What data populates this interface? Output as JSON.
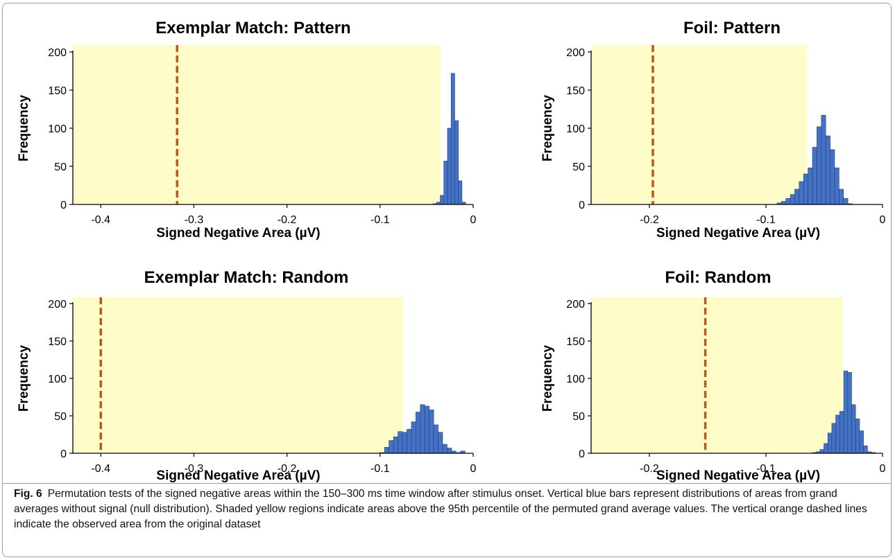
{
  "chart_data": [
    {
      "type": "bar",
      "title": "Exemplar Match: Pattern",
      "xlabel": "Signed Negative Area (µV)",
      "ylabel": "Frequency",
      "xlim": [
        -0.43,
        0.0
      ],
      "ylim": [
        0,
        200
      ],
      "xticks": [
        -0.4,
        -0.3,
        -0.2,
        -0.1,
        0
      ],
      "xtick_labels": [
        "-0.4",
        "-0.3",
        "-0.2",
        "-0.1",
        "0"
      ],
      "yticks": [
        0,
        50,
        100,
        150,
        200
      ],
      "yticks_labels": [
        "0",
        "50",
        "100",
        "150",
        "200"
      ],
      "bin_width": 0.0039,
      "bins_start": [
        -0.0432,
        -0.0393,
        -0.0354,
        -0.0315,
        -0.0276,
        -0.0237,
        -0.0198,
        -0.0159,
        -0.012
      ],
      "values": [
        1,
        3,
        12,
        57,
        100,
        172,
        110,
        31,
        3
      ],
      "shaded_region": [
        -0.43,
        -0.035
      ],
      "observed_line": -0.318,
      "colors": {
        "bar": "#4472c4",
        "bar_edge": "#1f3d7a",
        "shade": "#fefdc7",
        "line": "#c0561a"
      }
    },
    {
      "type": "bar",
      "title": "Foil: Pattern",
      "xlabel": "Signed Negative Area (µV)",
      "ylabel": "Frequency",
      "xlim": [
        -0.25,
        0.0
      ],
      "ylim": [
        0,
        200
      ],
      "xticks": [
        -0.2,
        -0.1,
        0
      ],
      "xtick_labels": [
        "-0.2",
        "-0.1",
        "0"
      ],
      "yticks": [
        0,
        50,
        100,
        150,
        200
      ],
      "yticks_labels": [
        "0",
        "50",
        "100",
        "150",
        "200"
      ],
      "bin_width": 0.0038,
      "bins_start": [
        -0.0905,
        -0.0867,
        -0.0829,
        -0.0791,
        -0.0753,
        -0.0715,
        -0.0677,
        -0.0639,
        -0.0601,
        -0.0563,
        -0.0525,
        -0.0487,
        -0.0449,
        -0.0411,
        -0.0373,
        -0.0335,
        -0.0297
      ],
      "values": [
        2,
        4,
        8,
        13,
        20,
        30,
        40,
        48,
        75,
        102,
        117,
        90,
        72,
        48,
        20,
        8,
        1
      ],
      "shaded_region": [
        -0.25,
        -0.065
      ],
      "observed_line": -0.197,
      "colors": {
        "bar": "#4472c4",
        "bar_edge": "#1f3d7a",
        "shade": "#fefdc7",
        "line": "#c0561a"
      }
    },
    {
      "type": "bar",
      "title": "Exemplar Match: Random",
      "xlabel": "Signed Negative Area (µV)",
      "ylabel": "Frequency",
      "xlim": [
        -0.43,
        0.0
      ],
      "ylim": [
        0,
        200
      ],
      "xticks": [
        -0.4,
        -0.3,
        -0.2,
        -0.1,
        0
      ],
      "xtick_labels": [
        "-0.4",
        "-0.3",
        "-0.2",
        "-0.1",
        "0"
      ],
      "yticks": [
        0,
        50,
        100,
        150,
        200
      ],
      "yticks_labels": [
        "0",
        "50",
        "100",
        "150",
        "200"
      ],
      "bin_width": 0.0048,
      "bins_start": [
        -0.1,
        -0.0952,
        -0.0904,
        -0.0856,
        -0.0808,
        -0.076,
        -0.0712,
        -0.0664,
        -0.0616,
        -0.0568,
        -0.052,
        -0.0472,
        -0.0424,
        -0.0376,
        -0.0328,
        -0.028,
        -0.0232,
        -0.0184,
        -0.0136
      ],
      "values": [
        1,
        8,
        17,
        22,
        29,
        28,
        32,
        42,
        55,
        65,
        63,
        58,
        38,
        28,
        12,
        7,
        3,
        1,
        3
      ],
      "shaded_region": [
        -0.43,
        -0.075
      ],
      "observed_line": -0.4,
      "colors": {
        "bar": "#4472c4",
        "bar_edge": "#1f3d7a",
        "shade": "#fefdc7",
        "line": "#c0561a"
      }
    },
    {
      "type": "bar",
      "title": "Foil: Random",
      "xlabel": "Signed Negative Area (µV)",
      "ylabel": "Frequency",
      "xlim": [
        -0.25,
        0.0
      ],
      "ylim": [
        0,
        200
      ],
      "xticks": [
        -0.2,
        -0.1,
        0
      ],
      "xtick_labels": [
        "-0.2",
        "-0.1",
        "0"
      ],
      "yticks": [
        0,
        50,
        100,
        150,
        200
      ],
      "yticks_labels": [
        "0",
        "50",
        "100",
        "150",
        "200"
      ],
      "bin_width": 0.0034,
      "bins_start": [
        -0.0605,
        -0.0571,
        -0.0537,
        -0.0503,
        -0.0469,
        -0.0435,
        -0.0401,
        -0.0367,
        -0.0333,
        -0.0299,
        -0.0265,
        -0.0231,
        -0.0197,
        -0.0163,
        -0.0129,
        -0.0095
      ],
      "values": [
        1,
        2,
        5,
        13,
        27,
        40,
        51,
        56,
        110,
        108,
        65,
        46,
        30,
        10,
        2,
        1
      ],
      "shaded_region": [
        -0.25,
        -0.034
      ],
      "observed_line": -0.152,
      "colors": {
        "bar": "#4472c4",
        "bar_edge": "#1f3d7a",
        "shade": "#fefdc7",
        "line": "#c0561a"
      }
    }
  ],
  "caption": {
    "label": "Fig. 6",
    "text": "Permutation tests of the signed negative areas within the 150–300 ms time window after stimulus onset. Vertical blue bars represent distributions of areas from grand averages without signal (null distribution). Shaded yellow regions indicate areas above the 95th percentile of the permuted grand average values. The vertical orange dashed lines indicate the observed area from the original dataset"
  }
}
